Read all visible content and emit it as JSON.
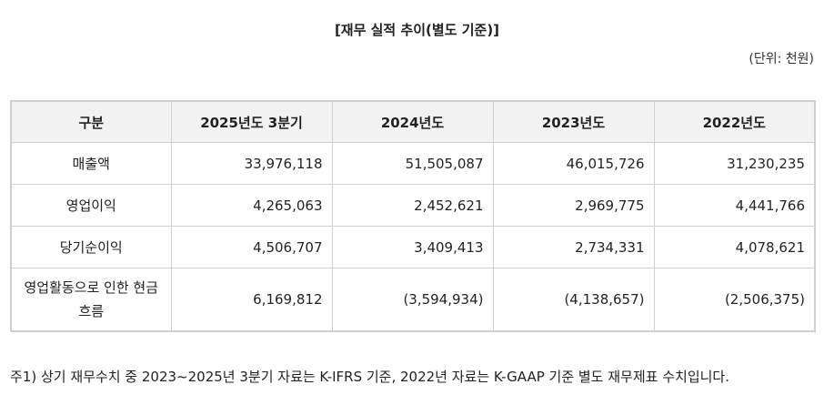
{
  "title": "[재무 실적 추이(별도 기준)]",
  "unit": "(단위: 천원)",
  "table": {
    "headers": [
      "구분",
      "2025년도 3분기",
      "2024년도",
      "2023년도",
      "2022년도"
    ],
    "rows": [
      {
        "label": "매출액",
        "values": [
          "33,976,118",
          "51,505,087",
          "46,015,726",
          "31,230,235"
        ]
      },
      {
        "label": "영업이익",
        "values": [
          "4,265,063",
          "2,452,621",
          "2,969,775",
          "4,441,766"
        ]
      },
      {
        "label": "당기순이익",
        "values": [
          "4,506,707",
          "3,409,413",
          "2,734,331",
          "4,078,621"
        ]
      },
      {
        "label": "영업활동으로 인한 현금흐름",
        "values": [
          "6,169,812",
          "(3,594,934)",
          "(4,138,657)",
          "(2,506,375)"
        ]
      }
    ]
  },
  "footnote": "주1) 상기 재무수치 중 2023~2025년 3분기 자료는 K-IFRS 기준, 2022년 자료는 K-GAAP 기준 별도 재무제표 수치입니다."
}
